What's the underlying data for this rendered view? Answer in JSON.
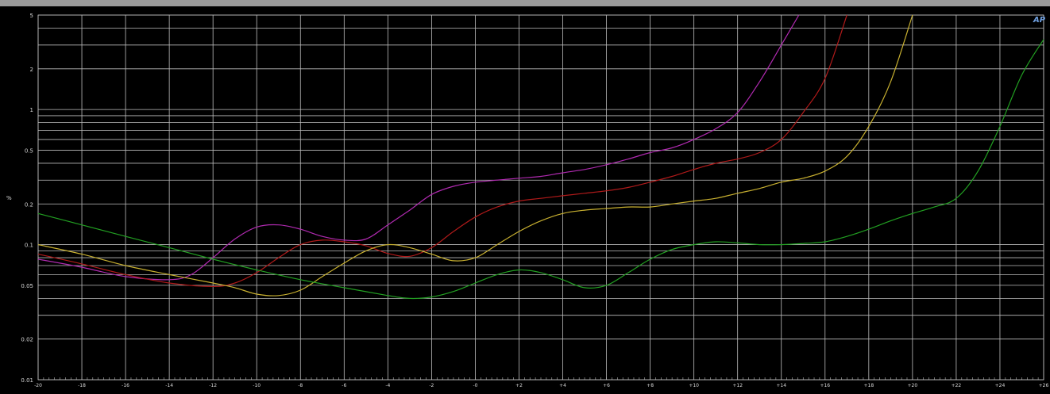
{
  "chart_data": {
    "type": "line",
    "title": "",
    "xlabel": "",
    "ylabel": "%",
    "logo_text": "AP",
    "y_scale": "log",
    "ylim": [
      0.01,
      5
    ],
    "xlim": [
      -20,
      26
    ],
    "grid": true,
    "y_ticks": [
      {
        "value": 5,
        "label": "5"
      },
      {
        "value": 2,
        "label": "2"
      },
      {
        "value": 1,
        "label": "1"
      },
      {
        "value": 0.5,
        "label": "0.5"
      },
      {
        "value": 0.2,
        "label": "0.2"
      },
      {
        "value": 0.1,
        "label": "0.1"
      },
      {
        "value": 0.05,
        "label": "0.05"
      },
      {
        "value": 0.02,
        "label": "0.02"
      },
      {
        "value": 0.01,
        "label": "0.01"
      }
    ],
    "x_ticks": [
      {
        "value": -20,
        "label": "-20"
      },
      {
        "value": -18,
        "label": "-18"
      },
      {
        "value": -16,
        "label": "-16"
      },
      {
        "value": -14,
        "label": "-14"
      },
      {
        "value": -12,
        "label": "-12"
      },
      {
        "value": -10,
        "label": "-10"
      },
      {
        "value": -8,
        "label": "-8"
      },
      {
        "value": -6,
        "label": "-6"
      },
      {
        "value": -4,
        "label": "-4"
      },
      {
        "value": -2,
        "label": "-2"
      },
      {
        "value": 0,
        "label": "-0"
      },
      {
        "value": 2,
        "label": "+2"
      },
      {
        "value": 4,
        "label": "+4"
      },
      {
        "value": 6,
        "label": "+6"
      },
      {
        "value": 8,
        "label": "+8"
      },
      {
        "value": 10,
        "label": "+10"
      },
      {
        "value": 12,
        "label": "+12"
      },
      {
        "value": 14,
        "label": "+14"
      },
      {
        "value": 16,
        "label": "+16"
      },
      {
        "value": 18,
        "label": "+18"
      },
      {
        "value": 20,
        "label": "+20"
      },
      {
        "value": 22,
        "label": "+22"
      },
      {
        "value": 24,
        "label": "+24"
      },
      {
        "value": 26,
        "label": "+26"
      }
    ],
    "series": [
      {
        "color": "#b02ab0",
        "points": [
          [
            -20,
            0.078
          ],
          [
            -18,
            0.068
          ],
          [
            -16,
            0.058
          ],
          [
            -14,
            0.055
          ],
          [
            -13,
            0.06
          ],
          [
            -12,
            0.08
          ],
          [
            -11,
            0.11
          ],
          [
            -10,
            0.135
          ],
          [
            -9,
            0.14
          ],
          [
            -8,
            0.13
          ],
          [
            -7,
            0.115
          ],
          [
            -6,
            0.108
          ],
          [
            -5,
            0.11
          ],
          [
            -4,
            0.14
          ],
          [
            -3,
            0.18
          ],
          [
            -2,
            0.235
          ],
          [
            -1,
            0.27
          ],
          [
            0,
            0.29
          ],
          [
            1,
            0.3
          ],
          [
            2,
            0.31
          ],
          [
            3,
            0.32
          ],
          [
            4,
            0.34
          ],
          [
            5,
            0.36
          ],
          [
            6,
            0.39
          ],
          [
            7,
            0.43
          ],
          [
            8,
            0.48
          ],
          [
            9,
            0.52
          ],
          [
            10,
            0.6
          ],
          [
            11,
            0.72
          ],
          [
            12,
            0.95
          ],
          [
            13,
            1.6
          ],
          [
            14,
            3.0
          ],
          [
            14.8,
            5.0
          ]
        ]
      },
      {
        "color": "#b01a1a",
        "points": [
          [
            -20,
            0.085
          ],
          [
            -18,
            0.072
          ],
          [
            -16,
            0.06
          ],
          [
            -14,
            0.052
          ],
          [
            -12,
            0.049
          ],
          [
            -11,
            0.052
          ],
          [
            -10,
            0.062
          ],
          [
            -9,
            0.08
          ],
          [
            -8,
            0.1
          ],
          [
            -7,
            0.108
          ],
          [
            -6,
            0.105
          ],
          [
            -5,
            0.098
          ],
          [
            -4,
            0.086
          ],
          [
            -3,
            0.082
          ],
          [
            -2,
            0.095
          ],
          [
            -1,
            0.125
          ],
          [
            0,
            0.16
          ],
          [
            1,
            0.19
          ],
          [
            2,
            0.21
          ],
          [
            3,
            0.22
          ],
          [
            4,
            0.23
          ],
          [
            5,
            0.24
          ],
          [
            6,
            0.25
          ],
          [
            7,
            0.265
          ],
          [
            8,
            0.29
          ],
          [
            9,
            0.32
          ],
          [
            10,
            0.36
          ],
          [
            11,
            0.4
          ],
          [
            12,
            0.43
          ],
          [
            13,
            0.48
          ],
          [
            14,
            0.6
          ],
          [
            15,
            0.95
          ],
          [
            16,
            1.7
          ],
          [
            17,
            5.0
          ]
        ]
      },
      {
        "color": "#c8b030",
        "points": [
          [
            -20,
            0.1
          ],
          [
            -18,
            0.085
          ],
          [
            -16,
            0.07
          ],
          [
            -14,
            0.06
          ],
          [
            -12,
            0.052
          ],
          [
            -11,
            0.048
          ],
          [
            -10,
            0.043
          ],
          [
            -9,
            0.042
          ],
          [
            -8,
            0.046
          ],
          [
            -7,
            0.058
          ],
          [
            -6,
            0.073
          ],
          [
            -5,
            0.09
          ],
          [
            -4,
            0.1
          ],
          [
            -3,
            0.095
          ],
          [
            -2,
            0.085
          ],
          [
            -1,
            0.076
          ],
          [
            0,
            0.08
          ],
          [
            1,
            0.1
          ],
          [
            2,
            0.125
          ],
          [
            3,
            0.15
          ],
          [
            4,
            0.17
          ],
          [
            5,
            0.18
          ],
          [
            6,
            0.185
          ],
          [
            7,
            0.19
          ],
          [
            8,
            0.19
          ],
          [
            9,
            0.2
          ],
          [
            10,
            0.21
          ],
          [
            11,
            0.22
          ],
          [
            12,
            0.24
          ],
          [
            13,
            0.26
          ],
          [
            14,
            0.29
          ],
          [
            15,
            0.31
          ],
          [
            16,
            0.35
          ],
          [
            17,
            0.45
          ],
          [
            18,
            0.75
          ],
          [
            19,
            1.6
          ],
          [
            20,
            5.0
          ]
        ]
      },
      {
        "color": "#22a022",
        "points": [
          [
            -20,
            0.17
          ],
          [
            -18,
            0.14
          ],
          [
            -16,
            0.115
          ],
          [
            -14,
            0.095
          ],
          [
            -12,
            0.078
          ],
          [
            -10,
            0.065
          ],
          [
            -8,
            0.055
          ],
          [
            -6,
            0.048
          ],
          [
            -4,
            0.042
          ],
          [
            -3,
            0.04
          ],
          [
            -2,
            0.041
          ],
          [
            -1,
            0.045
          ],
          [
            0,
            0.052
          ],
          [
            1,
            0.06
          ],
          [
            2,
            0.065
          ],
          [
            3,
            0.062
          ],
          [
            4,
            0.055
          ],
          [
            5,
            0.048
          ],
          [
            6,
            0.05
          ],
          [
            7,
            0.062
          ],
          [
            8,
            0.078
          ],
          [
            9,
            0.092
          ],
          [
            10,
            0.1
          ],
          [
            11,
            0.105
          ],
          [
            12,
            0.103
          ],
          [
            13,
            0.1
          ],
          [
            14,
            0.1
          ],
          [
            15,
            0.102
          ],
          [
            16,
            0.105
          ],
          [
            17,
            0.115
          ],
          [
            18,
            0.13
          ],
          [
            19,
            0.15
          ],
          [
            20,
            0.17
          ],
          [
            21,
            0.19
          ],
          [
            22,
            0.22
          ],
          [
            23,
            0.35
          ],
          [
            24,
            0.75
          ],
          [
            25,
            1.8
          ],
          [
            26,
            3.3
          ]
        ]
      }
    ]
  }
}
